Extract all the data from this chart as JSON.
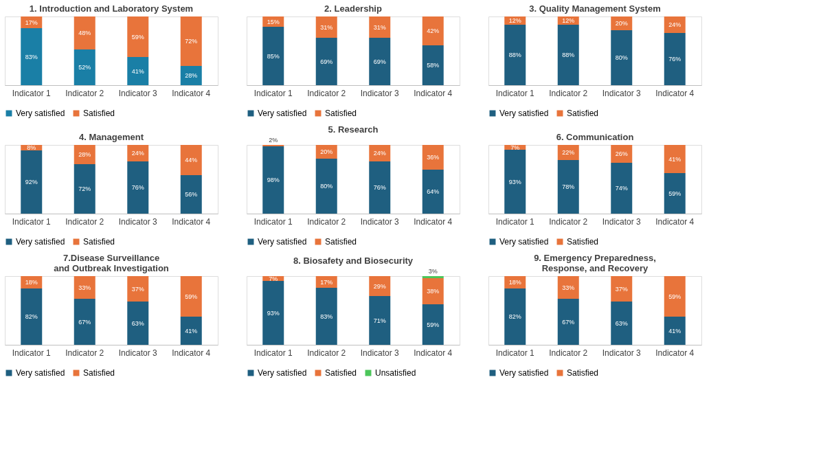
{
  "chart_data": [
    {
      "type": "bar",
      "title": "1. Introduction and Laboratory System",
      "categories": [
        "Indicator 1",
        "Indicator 2",
        "Indicator 3",
        "Indicator 4"
      ],
      "stacked": true,
      "data_labels": true,
      "legend": "bottom",
      "series": [
        {
          "name": "Very satisfied",
          "color": "#1a7fa6",
          "values": [
            83,
            52,
            41,
            28
          ],
          "value_labels": [
            "83%",
            "52%",
            "41%",
            "28%"
          ]
        },
        {
          "name": "Satisfied",
          "color": "#e8743b",
          "values": [
            17,
            48,
            59,
            72
          ],
          "value_labels": [
            "17%",
            "48%",
            "59%",
            "72%"
          ]
        }
      ]
    },
    {
      "type": "bar",
      "title": "2. Leadership",
      "categories": [
        "Indicator 1",
        "Indicator 2",
        "Indicator 3",
        "Indicator 4"
      ],
      "stacked": true,
      "data_labels": true,
      "legend": "bottom",
      "series": [
        {
          "name": "Very satisfied",
          "color": "#1f5f80",
          "values": [
            85,
            69,
            69,
            58
          ],
          "value_labels": [
            "85%",
            "69%",
            "69%",
            "58%"
          ]
        },
        {
          "name": "Satisfied",
          "color": "#e8743b",
          "values": [
            15,
            31,
            31,
            42
          ],
          "value_labels": [
            "15%",
            "31%",
            "31%",
            "42%"
          ]
        }
      ]
    },
    {
      "type": "bar",
      "title": "3. Quality Management System",
      "categories": [
        "Indicator 1",
        "Indicator 2",
        "Indicator 3",
        "Indicator 4"
      ],
      "stacked": true,
      "data_labels": true,
      "legend": "bottom",
      "series": [
        {
          "name": "Very satisfied",
          "color": "#1f5f80",
          "values": [
            88,
            88,
            80,
            76
          ],
          "value_labels": [
            "88%",
            "88%",
            "80%",
            "76%"
          ]
        },
        {
          "name": "Satisfied",
          "color": "#e8743b",
          "values": [
            12,
            12,
            20,
            24
          ],
          "value_labels": [
            "12%",
            "12%",
            "20%",
            "24%"
          ]
        }
      ]
    },
    {
      "type": "bar",
      "title": "4. Management",
      "categories": [
        "Indicator 1",
        "Indicator 2",
        "Indicator 3",
        "Indicator 4"
      ],
      "stacked": true,
      "data_labels": true,
      "legend": "bottom",
      "series": [
        {
          "name": "Very satisfied",
          "color": "#1f5f80",
          "values": [
            92,
            72,
            76,
            56
          ],
          "value_labels": [
            "92%",
            "72%",
            "76%",
            "56%"
          ]
        },
        {
          "name": "Satisfied",
          "color": "#e8743b",
          "values": [
            8,
            28,
            24,
            44
          ],
          "value_labels": [
            "8%",
            "28%",
            "24%",
            "44%"
          ]
        }
      ]
    },
    {
      "type": "bar",
      "title": "5. Research",
      "categories": [
        "Indicator 1",
        "Indicator 2",
        "Indicator 3",
        "Indicator 4"
      ],
      "stacked": true,
      "data_labels": true,
      "legend": "bottom",
      "series": [
        {
          "name": "Very satisfied",
          "color": "#1f5f80",
          "values": [
            98,
            80,
            76,
            64
          ],
          "value_labels": [
            "98%",
            "80%",
            "76%",
            "64%"
          ]
        },
        {
          "name": "Satisfied",
          "color": "#e8743b",
          "values": [
            2,
            20,
            24,
            36
          ],
          "value_labels": [
            "2%",
            "20%",
            "24%",
            "36%"
          ]
        }
      ]
    },
    {
      "type": "bar",
      "title": "6. Communication",
      "categories": [
        "Indicator 1",
        "Indicator 2",
        "Indicator 3",
        "Indicator 4"
      ],
      "stacked": true,
      "data_labels": true,
      "legend": "bottom",
      "series": [
        {
          "name": "Very satisfied",
          "color": "#1f5f80",
          "values": [
            93,
            78,
            74,
            59
          ],
          "value_labels": [
            "93%",
            "78%",
            "74%",
            "59%"
          ]
        },
        {
          "name": "Satisfied",
          "color": "#e8743b",
          "values": [
            7,
            22,
            26,
            41
          ],
          "value_labels": [
            "7%",
            "22%",
            "26%",
            "41%"
          ]
        }
      ]
    },
    {
      "type": "bar",
      "title": "7.Disease Surveillance and Outbreak Investigation",
      "categories": [
        "Indicator 1",
        "Indicator 2",
        "Indicator 3",
        "Indicator 4"
      ],
      "stacked": true,
      "data_labels": true,
      "legend": "bottom",
      "series": [
        {
          "name": "Very satisfied",
          "color": "#1f5f80",
          "values": [
            82,
            67,
            63,
            41
          ],
          "value_labels": [
            "82%",
            "67%",
            "63%",
            "41%"
          ]
        },
        {
          "name": "Satisfied",
          "color": "#e8743b",
          "values": [
            18,
            33,
            37,
            59
          ],
          "value_labels": [
            "18%",
            "33%",
            "37%",
            "59%"
          ]
        }
      ]
    },
    {
      "type": "bar",
      "title": "8. Biosafety and Biosecurity",
      "categories": [
        "Indicator 1",
        "Indicator 2",
        "Indicator 3",
        "Indicator 4"
      ],
      "stacked": true,
      "data_labels": true,
      "legend": "bottom",
      "series": [
        {
          "name": "Very satisfied",
          "color": "#1f5f80",
          "values": [
            93,
            83,
            71,
            59
          ],
          "value_labels": [
            "93%",
            "83%",
            "71%",
            "59%"
          ]
        },
        {
          "name": "Satisfied",
          "color": "#e8743b",
          "values": [
            7,
            17,
            29,
            38
          ],
          "value_labels": [
            "7%",
            "17%",
            "29%",
            "38%"
          ]
        },
        {
          "name": "Unsatisfied",
          "color": "#4cc65a",
          "values": [
            null,
            null,
            null,
            3
          ],
          "value_labels": [
            null,
            null,
            null,
            "3%"
          ]
        }
      ]
    },
    {
      "type": "bar",
      "title": "9. Emergency Preparedness, Response, and Recovery",
      "categories": [
        "Indicator 1",
        "Indicator 2",
        "Indicator 3",
        "Indicator 4"
      ],
      "stacked": true,
      "data_labels": true,
      "legend": "bottom",
      "series": [
        {
          "name": "Very satisfied",
          "color": "#1f5f80",
          "values": [
            82,
            67,
            63,
            41
          ],
          "value_labels": [
            "82%",
            "67%",
            "63%",
            "41%"
          ]
        },
        {
          "name": "Satisfied",
          "color": "#e8743b",
          "values": [
            18,
            33,
            37,
            59
          ],
          "value_labels": [
            "18%",
            "33%",
            "37%",
            "59%"
          ]
        }
      ]
    }
  ]
}
